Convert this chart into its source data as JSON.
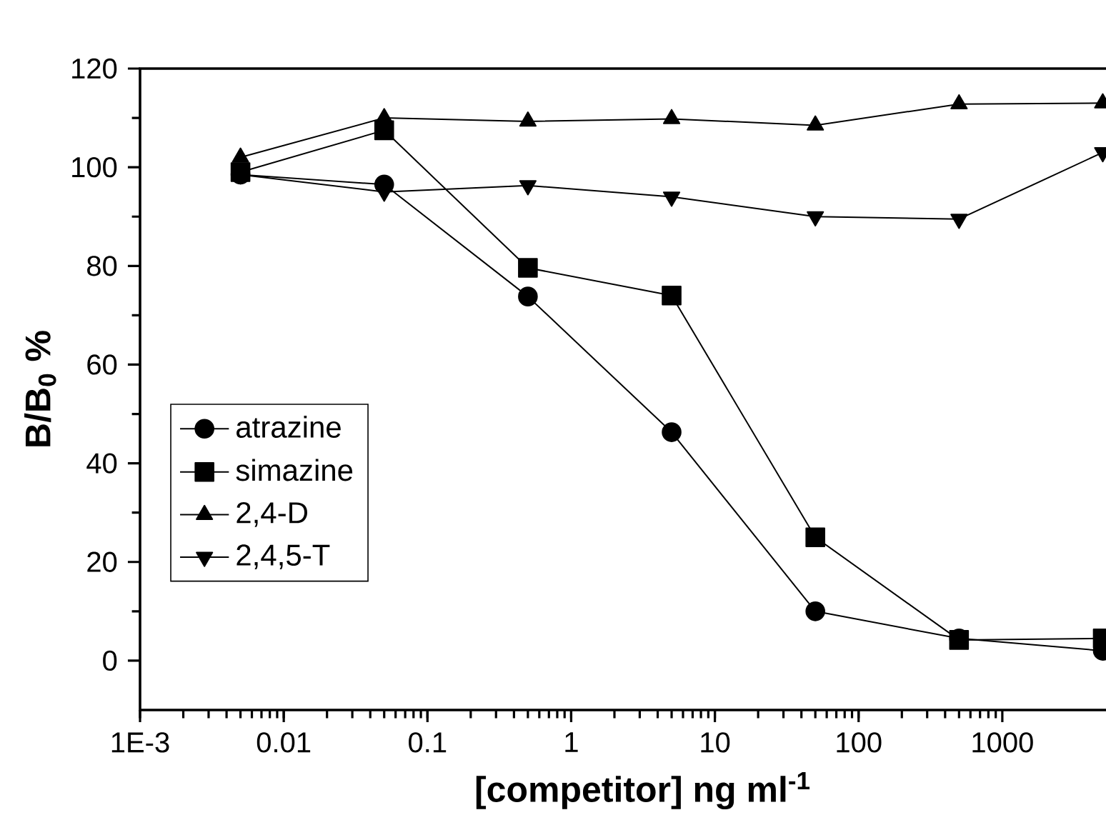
{
  "chart_data": {
    "type": "line",
    "xlabel": "[competitor] ng ml$^{-1}$",
    "ylabel": "B/B$_{0}$ %",
    "x": [
      0.005,
      0.05,
      0.5,
      5,
      50,
      500,
      5000
    ],
    "series": [
      {
        "name": "atrazine",
        "color": "#000000",
        "marker": "circle",
        "values": [
          98.5,
          96.5,
          73.8,
          46.3,
          10,
          4.5,
          2
        ]
      },
      {
        "name": "simazine",
        "color": "#000000",
        "marker": "square",
        "values": [
          99,
          107.5,
          79.6,
          74,
          25,
          4.2,
          4.5
        ]
      },
      {
        "name": "2,4-D",
        "color": "#000000",
        "marker": "triangle",
        "values": [
          102,
          110,
          109.3,
          109.8,
          108.5,
          112.8,
          113
        ]
      },
      {
        "name": "2,4,5-T",
        "color": "#000000",
        "marker": "triangle down",
        "values": [
          98.5,
          95,
          96.3,
          94,
          90,
          89.5,
          103
        ]
      }
    ],
    "log": "x",
    "xlim": [
      0.001,
      10000
    ],
    "xticks": [
      {
        "value": 0.001,
        "label": "1E-3"
      },
      0.01,
      0.1,
      1,
      10,
      100,
      1000
    ],
    "ylim": [
      -10,
      120
    ],
    "yticks": [
      0,
      20,
      40,
      60,
      80,
      100,
      120
    ],
    "grid": false,
    "legend": "bottom left",
    "line_style": "solid"
  }
}
